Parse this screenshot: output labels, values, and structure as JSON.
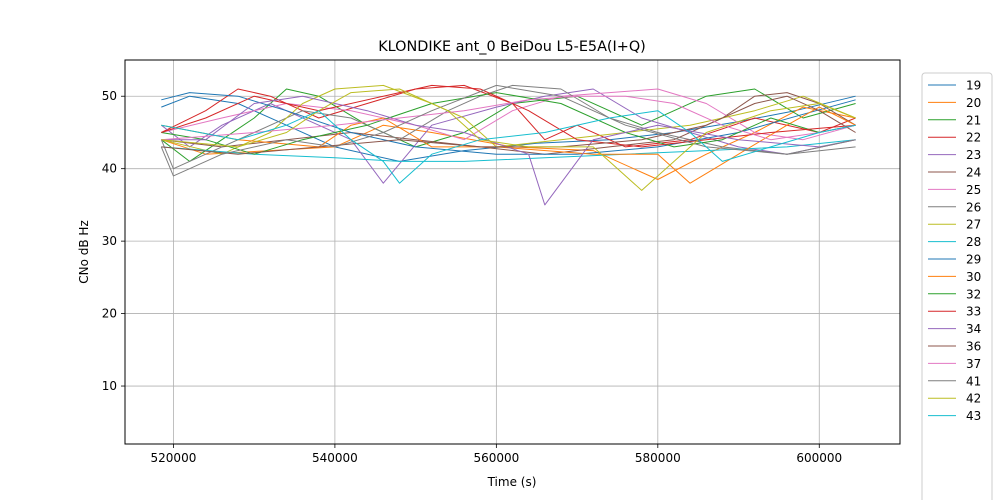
{
  "chart_data": {
    "type": "line",
    "title": "KLONDIKE ant_0 BeiDou L5-E5A(I+Q)",
    "xlabel": "Time (s)",
    "ylabel": "CNo dB Hz",
    "xlim": [
      514000,
      610000
    ],
    "ylim": [
      2,
      55
    ],
    "x_ticks": [
      520000,
      540000,
      560000,
      580000,
      600000
    ],
    "x_tick_labels": [
      "520000",
      "540000",
      "560000",
      "580000",
      "600000"
    ],
    "y_ticks": [
      10,
      20,
      30,
      40,
      50
    ],
    "y_tick_labels": [
      "10",
      "20",
      "30",
      "40",
      "50"
    ],
    "grid": true,
    "legend_position": "right, outside plot",
    "series": [
      {
        "name": "19",
        "color": "#1f77b4",
        "x": [
          518500,
          522000,
          528000,
          533000,
          540000,
          548000,
          556000,
          565000,
          574000,
          582000,
          590000,
          597000,
          604500
        ],
        "y": [
          48.5,
          50.0,
          49.0,
          46.5,
          43.0,
          41.0,
          42.5,
          43.5,
          44.0,
          45.0,
          46.5,
          48.0,
          50.0
        ]
      },
      {
        "name": "20",
        "color": "#ff7f0e",
        "x": [
          518500,
          524000,
          532000,
          540000,
          546000,
          552000,
          562000,
          572000,
          580000,
          586000,
          592000,
          598000,
          604500
        ],
        "y": [
          44.0,
          42.0,
          42.5,
          43.0,
          46.0,
          45.0,
          43.0,
          42.5,
          38.5,
          42.0,
          45.0,
          48.5,
          47.0
        ]
      },
      {
        "name": "21",
        "color": "#2ca02c",
        "x": [
          518500,
          522000,
          526000,
          530000,
          534000,
          538000,
          544000,
          550000,
          556000,
          562000,
          570000,
          578000,
          586000,
          592000,
          598000,
          604500
        ],
        "y": [
          44.0,
          41.0,
          44.0,
          47.0,
          51.0,
          50.0,
          46.0,
          43.0,
          45.0,
          49.0,
          50.0,
          46.0,
          50.0,
          51.0,
          47.0,
          49.0
        ]
      },
      {
        "name": "22",
        "color": "#d62728",
        "x": [
          518500,
          524000,
          528000,
          532000,
          538000,
          544000,
          550000,
          556000,
          562000,
          566000,
          570000,
          576000,
          584000,
          592000,
          600000,
          604500
        ],
        "y": [
          45.0,
          48.0,
          51.0,
          50.0,
          47.0,
          49.0,
          51.0,
          51.5,
          49.0,
          44.0,
          46.0,
          43.0,
          44.0,
          47.0,
          45.0,
          47.0
        ]
      },
      {
        "name": "23",
        "color": "#9467bd",
        "x": [
          518500,
          522000,
          526000,
          532000,
          538000,
          542000,
          546000,
          552000,
          560000,
          566000,
          572000,
          578000,
          584000,
          590000,
          596000,
          604500
        ],
        "y": [
          46.0,
          43.0,
          46.0,
          49.0,
          46.0,
          44.0,
          38.0,
          46.0,
          48.5,
          50.0,
          51.0,
          47.0,
          45.0,
          43.0,
          42.0,
          44.0
        ]
      },
      {
        "name": "24",
        "color": "#8c564b",
        "x": [
          518500,
          526000,
          534000,
          542000,
          550000,
          558000,
          566000,
          574000,
          582000,
          588000,
          592000,
          596000,
          600000,
          604500
        ],
        "y": [
          44.0,
          43.0,
          44.0,
          45.0,
          44.0,
          43.0,
          42.0,
          43.0,
          44.0,
          47.0,
          50.0,
          50.5,
          49.0,
          46.0
        ]
      },
      {
        "name": "25",
        "color": "#e377c2",
        "x": [
          518500,
          526000,
          534000,
          542000,
          550000,
          556000,
          562000,
          568000,
          574000,
          580000,
          586000,
          592000,
          598000,
          604500
        ],
        "y": [
          45.0,
          47.0,
          49.0,
          48.0,
          46.0,
          44.0,
          48.0,
          50.0,
          50.5,
          51.0,
          49.0,
          45.0,
          44.0,
          46.0
        ]
      },
      {
        "name": "26",
        "color": "#7f7f7f",
        "x": [
          518500,
          520000,
          524000,
          530000,
          536000,
          542000,
          548000,
          554000,
          558000,
          562000,
          568000,
          574000,
          580000,
          588000,
          596000,
          604500
        ],
        "y": [
          44.0,
          40.0,
          42.0,
          45.0,
          48.0,
          47.0,
          44.0,
          48.0,
          50.0,
          51.5,
          51.0,
          47.0,
          45.0,
          43.0,
          42.0,
          43.0
        ]
      },
      {
        "name": "27",
        "color": "#bcbd22",
        "x": [
          518500,
          526000,
          532000,
          536000,
          540000,
          546000,
          552000,
          556000,
          560000,
          568000,
          576000,
          584000,
          592000,
          598000,
          604500
        ],
        "y": [
          44.0,
          42.0,
          45.0,
          49.0,
          51.0,
          51.5,
          49.0,
          47.0,
          43.0,
          44.0,
          45.0,
          46.0,
          48.0,
          50.0,
          47.0
        ]
      },
      {
        "name": "28",
        "color": "#17becf",
        "x": [
          518500,
          530000,
          540000,
          548000,
          556000,
          566000,
          576000,
          586000,
          596000,
          604500
        ],
        "y": [
          43.0,
          42.0,
          41.5,
          41.0,
          41.0,
          41.5,
          42.0,
          42.5,
          43.0,
          44.0
        ]
      },
      {
        "name": "29",
        "color": "#1f77b4",
        "x": [
          518500,
          522000,
          528000,
          534000,
          542000,
          550000,
          560000,
          570000,
          580000,
          590000,
          598000,
          604500
        ],
        "y": [
          49.5,
          50.5,
          50.0,
          48.0,
          45.0,
          43.0,
          42.0,
          42.0,
          43.0,
          45.0,
          47.5,
          49.5
        ]
      },
      {
        "name": "30",
        "color": "#ff7f0e",
        "x": [
          518500,
          528000,
          538000,
          542000,
          546000,
          552000,
          560000,
          572000,
          580000,
          584000,
          590000,
          596000,
          600000,
          604500
        ],
        "y": [
          46.0,
          44.0,
          43.0,
          46.0,
          47.0,
          43.0,
          43.0,
          42.0,
          42.0,
          38.0,
          42.0,
          46.0,
          48.5,
          46.0
        ]
      },
      {
        "name": "32",
        "color": "#2ca02c",
        "x": [
          518500,
          524000,
          530000,
          536000,
          544000,
          552000,
          560000,
          568000,
          576000,
          582000,
          588000,
          594000,
          600000,
          604500
        ],
        "y": [
          45.0,
          44.0,
          42.0,
          44.0,
          46.0,
          49.0,
          50.5,
          49.0,
          45.0,
          43.0,
          44.0,
          47.0,
          45.0,
          46.0
        ]
      },
      {
        "name": "33",
        "color": "#d62728",
        "x": [
          518500,
          524000,
          530000,
          538000,
          546000,
          552000,
          558000,
          564000,
          570000,
          578000,
          586000,
          594000,
          604500
        ],
        "y": [
          45.0,
          47.0,
          50.0,
          48.0,
          50.0,
          51.5,
          51.0,
          48.0,
          44.0,
          43.0,
          44.0,
          45.0,
          46.0
        ]
      },
      {
        "name": "34",
        "color": "#9467bd",
        "x": [
          518500,
          524000,
          530000,
          536000,
          544000,
          550000,
          556000,
          564000,
          566000,
          572000,
          580000,
          590000,
          600000,
          604500
        ],
        "y": [
          44.0,
          44.0,
          49.0,
          50.0,
          48.0,
          46.0,
          45.0,
          42.0,
          35.0,
          44.0,
          46.0,
          44.0,
          43.0,
          44.0
        ]
      },
      {
        "name": "36",
        "color": "#8c564b",
        "x": [
          518500,
          528000,
          538000,
          548000,
          558000,
          568000,
          578000,
          586000,
          592000,
          596000,
          600000,
          604500
        ],
        "y": [
          43.0,
          42.0,
          43.0,
          44.0,
          43.0,
          43.0,
          44.0,
          46.0,
          49.0,
          50.0,
          48.0,
          45.0
        ]
      },
      {
        "name": "37",
        "color": "#e377c2",
        "x": [
          518500,
          530000,
          540000,
          548000,
          556000,
          564000,
          570000,
          576000,
          582000,
          588000,
          594000,
          600000,
          604500
        ],
        "y": [
          44.0,
          45.0,
          46.0,
          47.0,
          48.0,
          49.5,
          50.0,
          50.0,
          49.0,
          46.0,
          44.0,
          45.0,
          46.0
        ]
      },
      {
        "name": "41",
        "color": "#7f7f7f",
        "x": [
          518500,
          520000,
          526000,
          534000,
          540000,
          546000,
          552000,
          560000,
          568000,
          576000,
          586000,
          596000,
          604500
        ],
        "y": [
          43.0,
          39.0,
          42.0,
          44.0,
          43.0,
          45.0,
          48.0,
          51.5,
          50.0,
          46.0,
          43.0,
          42.0,
          44.0
        ]
      },
      {
        "name": "42",
        "color": "#bcbd22",
        "x": [
          518500,
          528000,
          534000,
          538000,
          542000,
          548000,
          554000,
          558000,
          564000,
          572000,
          578000,
          586000,
          594000,
          600000,
          604500
        ],
        "y": [
          44.0,
          43.0,
          45.0,
          48.0,
          50.5,
          51.0,
          48.0,
          44.0,
          43.0,
          43.0,
          37.0,
          45.0,
          48.0,
          49.0,
          47.0
        ]
      },
      {
        "name": "43",
        "color": "#17becf",
        "x": [
          518500,
          528000,
          534000,
          538000,
          542000,
          546000,
          548000,
          552000,
          558000,
          566000,
          574000,
          580000,
          584000,
          588000,
          594000,
          600000,
          604500
        ],
        "y": [
          46.0,
          44.0,
          46.0,
          48.0,
          44.0,
          41.0,
          38.0,
          42.0,
          44.0,
          45.0,
          47.0,
          48.0,
          45.0,
          41.0,
          43.0,
          45.0,
          46.0
        ]
      }
    ]
  }
}
